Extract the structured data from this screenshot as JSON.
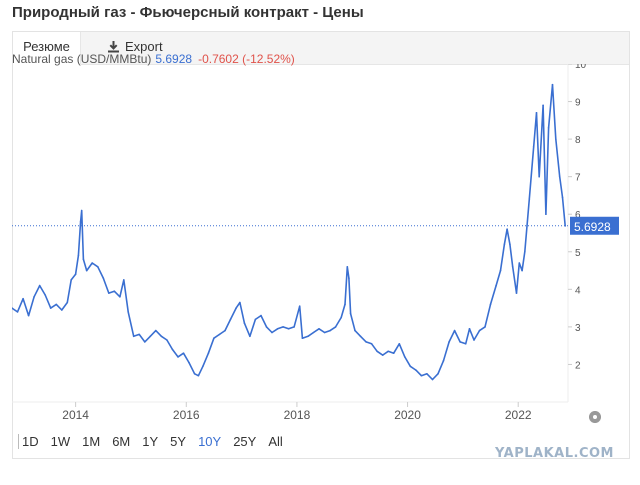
{
  "page": {
    "title": "Природный газ - Фьючерсный контракт - Цены"
  },
  "tabs": {
    "summary": "Резюме",
    "export": "Export"
  },
  "header": {
    "name": "Natural gas (USD/MMBtu)",
    "price": "5.6928",
    "change": "-0.7602 (-12.52%)"
  },
  "ranges": {
    "items": [
      "1D",
      "1W",
      "1M",
      "6M",
      "1Y",
      "5Y",
      "10Y",
      "25Y",
      "All"
    ],
    "active": "10Y"
  },
  "watermark": "YAPLAKAL.COM",
  "colors": {
    "line": "#3a6fd1",
    "negative": "#e0524a",
    "grid": "#eeeeee"
  },
  "icons": {
    "export": "download-icon",
    "settings": "gear-icon"
  },
  "chart_data": {
    "type": "line",
    "title": "Natural gas (USD/MMBtu)",
    "xlabel": "",
    "ylabel": "",
    "xlim": [
      2012.85,
      2022.9
    ],
    "ylim": [
      1,
      10
    ],
    "x_ticks": [
      "2014",
      "2016",
      "2018",
      "2020",
      "2022"
    ],
    "y_ticks": [
      "2",
      "3",
      "4",
      "5",
      "6",
      "7",
      "8",
      "9",
      "10"
    ],
    "y_axis_side": "right",
    "last_value": 5.6928,
    "last_value_label": "5.6928",
    "grid": false,
    "series": [
      {
        "points": [
          [
            2012.85,
            3.5
          ],
          [
            2012.95,
            3.4
          ],
          [
            2013.05,
            3.75
          ],
          [
            2013.15,
            3.3
          ],
          [
            2013.25,
            3.8
          ],
          [
            2013.35,
            4.1
          ],
          [
            2013.45,
            3.85
          ],
          [
            2013.55,
            3.5
          ],
          [
            2013.65,
            3.6
          ],
          [
            2013.75,
            3.45
          ],
          [
            2013.85,
            3.65
          ],
          [
            2013.92,
            4.25
          ],
          [
            2014.0,
            4.4
          ],
          [
            2014.05,
            4.9
          ],
          [
            2014.09,
            5.8
          ],
          [
            2014.11,
            6.1
          ],
          [
            2014.14,
            4.8
          ],
          [
            2014.2,
            4.5
          ],
          [
            2014.3,
            4.7
          ],
          [
            2014.4,
            4.6
          ],
          [
            2014.5,
            4.3
          ],
          [
            2014.6,
            3.9
          ],
          [
            2014.7,
            3.95
          ],
          [
            2014.8,
            3.8
          ],
          [
            2014.87,
            4.25
          ],
          [
            2014.95,
            3.4
          ],
          [
            2015.05,
            2.75
          ],
          [
            2015.15,
            2.8
          ],
          [
            2015.25,
            2.6
          ],
          [
            2015.35,
            2.75
          ],
          [
            2015.45,
            2.9
          ],
          [
            2015.55,
            2.75
          ],
          [
            2015.65,
            2.65
          ],
          [
            2015.75,
            2.4
          ],
          [
            2015.85,
            2.2
          ],
          [
            2015.95,
            2.3
          ],
          [
            2016.05,
            2.05
          ],
          [
            2016.15,
            1.75
          ],
          [
            2016.22,
            1.7
          ],
          [
            2016.3,
            1.95
          ],
          [
            2016.4,
            2.3
          ],
          [
            2016.5,
            2.7
          ],
          [
            2016.6,
            2.8
          ],
          [
            2016.7,
            2.9
          ],
          [
            2016.8,
            3.2
          ],
          [
            2016.9,
            3.5
          ],
          [
            2016.97,
            3.65
          ],
          [
            2017.05,
            3.1
          ],
          [
            2017.15,
            2.75
          ],
          [
            2017.25,
            3.2
          ],
          [
            2017.35,
            3.3
          ],
          [
            2017.45,
            3.0
          ],
          [
            2017.55,
            2.85
          ],
          [
            2017.65,
            2.95
          ],
          [
            2017.75,
            3.0
          ],
          [
            2017.85,
            2.95
          ],
          [
            2017.95,
            3.0
          ],
          [
            2018.05,
            3.55
          ],
          [
            2018.1,
            2.7
          ],
          [
            2018.2,
            2.75
          ],
          [
            2018.3,
            2.85
          ],
          [
            2018.4,
            2.95
          ],
          [
            2018.5,
            2.85
          ],
          [
            2018.6,
            2.9
          ],
          [
            2018.7,
            3.0
          ],
          [
            2018.8,
            3.25
          ],
          [
            2018.87,
            3.6
          ],
          [
            2018.91,
            4.6
          ],
          [
            2018.94,
            4.3
          ],
          [
            2018.97,
            3.35
          ],
          [
            2019.05,
            2.9
          ],
          [
            2019.15,
            2.75
          ],
          [
            2019.25,
            2.6
          ],
          [
            2019.35,
            2.55
          ],
          [
            2019.45,
            2.35
          ],
          [
            2019.55,
            2.25
          ],
          [
            2019.65,
            2.35
          ],
          [
            2019.75,
            2.3
          ],
          [
            2019.85,
            2.55
          ],
          [
            2019.95,
            2.2
          ],
          [
            2020.05,
            1.95
          ],
          [
            2020.15,
            1.85
          ],
          [
            2020.25,
            1.7
          ],
          [
            2020.35,
            1.75
          ],
          [
            2020.45,
            1.6
          ],
          [
            2020.55,
            1.75
          ],
          [
            2020.65,
            2.1
          ],
          [
            2020.75,
            2.6
          ],
          [
            2020.85,
            2.9
          ],
          [
            2020.95,
            2.6
          ],
          [
            2021.05,
            2.55
          ],
          [
            2021.12,
            2.95
          ],
          [
            2021.2,
            2.65
          ],
          [
            2021.3,
            2.9
          ],
          [
            2021.4,
            3.0
          ],
          [
            2021.5,
            3.6
          ],
          [
            2021.6,
            4.1
          ],
          [
            2021.68,
            4.5
          ],
          [
            2021.75,
            5.2
          ],
          [
            2021.8,
            5.6
          ],
          [
            2021.85,
            5.2
          ],
          [
            2021.9,
            4.6
          ],
          [
            2021.97,
            3.9
          ],
          [
            2022.02,
            4.7
          ],
          [
            2022.07,
            4.5
          ],
          [
            2022.12,
            5.0
          ],
          [
            2022.2,
            6.4
          ],
          [
            2022.28,
            7.8
          ],
          [
            2022.33,
            8.7
          ],
          [
            2022.38,
            7.0
          ],
          [
            2022.45,
            8.9
          ],
          [
            2022.5,
            6.0
          ],
          [
            2022.55,
            8.3
          ],
          [
            2022.62,
            9.45
          ],
          [
            2022.68,
            8.0
          ],
          [
            2022.75,
            7.0
          ],
          [
            2022.8,
            6.45
          ],
          [
            2022.85,
            5.69
          ]
        ]
      }
    ]
  }
}
